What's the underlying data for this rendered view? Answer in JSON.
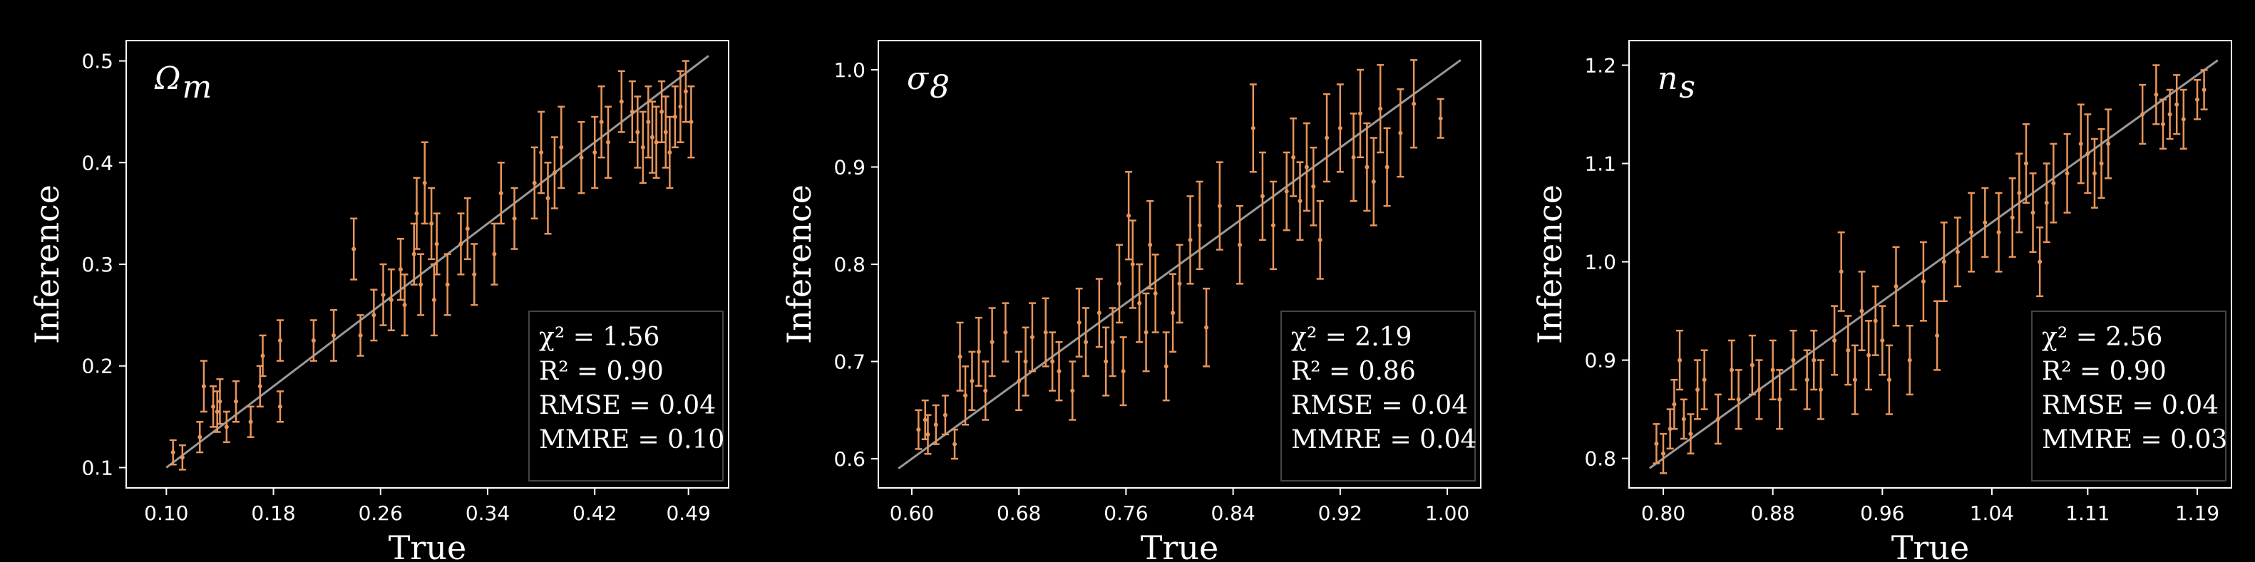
{
  "chart_data": [
    {
      "type": "scatter",
      "panel_label": "Ω_m",
      "panel_label_main": "Ω",
      "panel_label_sub": "m",
      "xlabel": "True",
      "ylabel": "Inference",
      "xlim": [
        0.07,
        0.52
      ],
      "ylim": [
        0.08,
        0.52
      ],
      "xticks": [
        0.1,
        0.18,
        0.26,
        0.34,
        0.42,
        0.49
      ],
      "xtick_labels": [
        "0.10",
        "0.18",
        "0.26",
        "0.34",
        "0.42",
        "0.49"
      ],
      "yticks": [
        0.1,
        0.2,
        0.3,
        0.4,
        0.5
      ],
      "ytick_labels": [
        "0.1",
        "0.2",
        "0.3",
        "0.4",
        "0.5"
      ],
      "diagonal": [
        0.1,
        0.505
      ],
      "stats": [
        "χ² = 1.56",
        "R² = 0.90",
        "RMSE = 0.04",
        "MMRE = 0.10"
      ],
      "points": [
        {
          "x": 0.105,
          "y": 0.115,
          "e": 0.012
        },
        {
          "x": 0.112,
          "y": 0.11,
          "e": 0.012
        },
        {
          "x": 0.125,
          "y": 0.13,
          "e": 0.015
        },
        {
          "x": 0.128,
          "y": 0.18,
          "e": 0.025
        },
        {
          "x": 0.135,
          "y": 0.16,
          "e": 0.02
        },
        {
          "x": 0.138,
          "y": 0.155,
          "e": 0.02
        },
        {
          "x": 0.14,
          "y": 0.165,
          "e": 0.022
        },
        {
          "x": 0.145,
          "y": 0.14,
          "e": 0.015
        },
        {
          "x": 0.152,
          "y": 0.165,
          "e": 0.02
        },
        {
          "x": 0.163,
          "y": 0.145,
          "e": 0.015
        },
        {
          "x": 0.17,
          "y": 0.18,
          "e": 0.02
        },
        {
          "x": 0.172,
          "y": 0.21,
          "e": 0.02
        },
        {
          "x": 0.185,
          "y": 0.225,
          "e": 0.02
        },
        {
          "x": 0.185,
          "y": 0.16,
          "e": 0.015
        },
        {
          "x": 0.21,
          "y": 0.225,
          "e": 0.02
        },
        {
          "x": 0.225,
          "y": 0.23,
          "e": 0.025
        },
        {
          "x": 0.24,
          "y": 0.315,
          "e": 0.03
        },
        {
          "x": 0.245,
          "y": 0.23,
          "e": 0.02
        },
        {
          "x": 0.255,
          "y": 0.25,
          "e": 0.025
        },
        {
          "x": 0.262,
          "y": 0.27,
          "e": 0.03
        },
        {
          "x": 0.268,
          "y": 0.265,
          "e": 0.03
        },
        {
          "x": 0.275,
          "y": 0.295,
          "e": 0.03
        },
        {
          "x": 0.278,
          "y": 0.26,
          "e": 0.03
        },
        {
          "x": 0.285,
          "y": 0.31,
          "e": 0.03
        },
        {
          "x": 0.287,
          "y": 0.35,
          "e": 0.035
        },
        {
          "x": 0.29,
          "y": 0.28,
          "e": 0.03
        },
        {
          "x": 0.293,
          "y": 0.38,
          "e": 0.04
        },
        {
          "x": 0.298,
          "y": 0.34,
          "e": 0.035
        },
        {
          "x": 0.3,
          "y": 0.265,
          "e": 0.035
        },
        {
          "x": 0.302,
          "y": 0.32,
          "e": 0.03
        },
        {
          "x": 0.31,
          "y": 0.28,
          "e": 0.03
        },
        {
          "x": 0.32,
          "y": 0.32,
          "e": 0.03
        },
        {
          "x": 0.325,
          "y": 0.335,
          "e": 0.03
        },
        {
          "x": 0.33,
          "y": 0.29,
          "e": 0.03
        },
        {
          "x": 0.345,
          "y": 0.31,
          "e": 0.03
        },
        {
          "x": 0.35,
          "y": 0.37,
          "e": 0.03
        },
        {
          "x": 0.36,
          "y": 0.345,
          "e": 0.03
        },
        {
          "x": 0.375,
          "y": 0.38,
          "e": 0.035
        },
        {
          "x": 0.38,
          "y": 0.41,
          "e": 0.04
        },
        {
          "x": 0.385,
          "y": 0.365,
          "e": 0.035
        },
        {
          "x": 0.39,
          "y": 0.39,
          "e": 0.035
        },
        {
          "x": 0.395,
          "y": 0.415,
          "e": 0.04
        },
        {
          "x": 0.41,
          "y": 0.405,
          "e": 0.035
        },
        {
          "x": 0.42,
          "y": 0.41,
          "e": 0.035
        },
        {
          "x": 0.425,
          "y": 0.44,
          "e": 0.035
        },
        {
          "x": 0.43,
          "y": 0.42,
          "e": 0.035
        },
        {
          "x": 0.44,
          "y": 0.46,
          "e": 0.03
        },
        {
          "x": 0.448,
          "y": 0.45,
          "e": 0.03
        },
        {
          "x": 0.452,
          "y": 0.43,
          "e": 0.035
        },
        {
          "x": 0.456,
          "y": 0.415,
          "e": 0.035
        },
        {
          "x": 0.46,
          "y": 0.44,
          "e": 0.035
        },
        {
          "x": 0.463,
          "y": 0.425,
          "e": 0.035
        },
        {
          "x": 0.466,
          "y": 0.42,
          "e": 0.035
        },
        {
          "x": 0.47,
          "y": 0.45,
          "e": 0.03
        },
        {
          "x": 0.473,
          "y": 0.43,
          "e": 0.035
        },
        {
          "x": 0.476,
          "y": 0.41,
          "e": 0.035
        },
        {
          "x": 0.48,
          "y": 0.445,
          "e": 0.03
        },
        {
          "x": 0.484,
          "y": 0.455,
          "e": 0.035
        },
        {
          "x": 0.488,
          "y": 0.47,
          "e": 0.03
        },
        {
          "x": 0.492,
          "y": 0.44,
          "e": 0.035
        }
      ]
    },
    {
      "type": "scatter",
      "panel_label": "σ_8",
      "panel_label_main": "σ",
      "panel_label_sub": "8",
      "xlabel": "True",
      "ylabel": "Inference",
      "xlim": [
        0.575,
        1.025
      ],
      "ylim": [
        0.57,
        1.03
      ],
      "xticks": [
        0.6,
        0.68,
        0.76,
        0.84,
        0.92,
        1.0
      ],
      "xtick_labels": [
        "0.60",
        "0.68",
        "0.76",
        "0.84",
        "0.92",
        "1.00"
      ],
      "yticks": [
        0.6,
        0.7,
        0.8,
        0.9,
        1.0
      ],
      "ytick_labels": [
        "0.6",
        "0.7",
        "0.8",
        "0.9",
        "1.0"
      ],
      "diagonal": [
        0.59,
        1.01
      ],
      "stats": [
        "χ² = 2.19",
        "R² = 0.86",
        "RMSE = 0.04",
        "MMRE = 0.04"
      ],
      "points": [
        {
          "x": 0.605,
          "y": 0.63,
          "e": 0.02
        },
        {
          "x": 0.61,
          "y": 0.64,
          "e": 0.02
        },
        {
          "x": 0.612,
          "y": 0.625,
          "e": 0.02
        },
        {
          "x": 0.618,
          "y": 0.635,
          "e": 0.02
        },
        {
          "x": 0.625,
          "y": 0.645,
          "e": 0.02
        },
        {
          "x": 0.632,
          "y": 0.615,
          "e": 0.015
        },
        {
          "x": 0.636,
          "y": 0.705,
          "e": 0.035
        },
        {
          "x": 0.64,
          "y": 0.665,
          "e": 0.03
        },
        {
          "x": 0.645,
          "y": 0.68,
          "e": 0.03
        },
        {
          "x": 0.65,
          "y": 0.71,
          "e": 0.035
        },
        {
          "x": 0.655,
          "y": 0.67,
          "e": 0.03
        },
        {
          "x": 0.66,
          "y": 0.72,
          "e": 0.035
        },
        {
          "x": 0.67,
          "y": 0.73,
          "e": 0.03
        },
        {
          "x": 0.68,
          "y": 0.68,
          "e": 0.03
        },
        {
          "x": 0.685,
          "y": 0.7,
          "e": 0.035
        },
        {
          "x": 0.69,
          "y": 0.725,
          "e": 0.035
        },
        {
          "x": 0.7,
          "y": 0.73,
          "e": 0.035
        },
        {
          "x": 0.705,
          "y": 0.7,
          "e": 0.03
        },
        {
          "x": 0.71,
          "y": 0.69,
          "e": 0.03
        },
        {
          "x": 0.72,
          "y": 0.67,
          "e": 0.03
        },
        {
          "x": 0.725,
          "y": 0.74,
          "e": 0.035
        },
        {
          "x": 0.73,
          "y": 0.72,
          "e": 0.035
        },
        {
          "x": 0.74,
          "y": 0.75,
          "e": 0.035
        },
        {
          "x": 0.745,
          "y": 0.7,
          "e": 0.035
        },
        {
          "x": 0.75,
          "y": 0.72,
          "e": 0.035
        },
        {
          "x": 0.755,
          "y": 0.78,
          "e": 0.04
        },
        {
          "x": 0.758,
          "y": 0.69,
          "e": 0.035
        },
        {
          "x": 0.762,
          "y": 0.85,
          "e": 0.045
        },
        {
          "x": 0.765,
          "y": 0.8,
          "e": 0.045
        },
        {
          "x": 0.77,
          "y": 0.76,
          "e": 0.04
        },
        {
          "x": 0.775,
          "y": 0.73,
          "e": 0.04
        },
        {
          "x": 0.778,
          "y": 0.82,
          "e": 0.045
        },
        {
          "x": 0.782,
          "y": 0.77,
          "e": 0.04
        },
        {
          "x": 0.79,
          "y": 0.695,
          "e": 0.035
        },
        {
          "x": 0.795,
          "y": 0.75,
          "e": 0.04
        },
        {
          "x": 0.8,
          "y": 0.78,
          "e": 0.04
        },
        {
          "x": 0.808,
          "y": 0.825,
          "e": 0.045
        },
        {
          "x": 0.815,
          "y": 0.84,
          "e": 0.045
        },
        {
          "x": 0.82,
          "y": 0.735,
          "e": 0.04
        },
        {
          "x": 0.83,
          "y": 0.86,
          "e": 0.045
        },
        {
          "x": 0.845,
          "y": 0.82,
          "e": 0.04
        },
        {
          "x": 0.855,
          "y": 0.94,
          "e": 0.045
        },
        {
          "x": 0.862,
          "y": 0.87,
          "e": 0.045
        },
        {
          "x": 0.87,
          "y": 0.84,
          "e": 0.045
        },
        {
          "x": 0.88,
          "y": 0.875,
          "e": 0.04
        },
        {
          "x": 0.885,
          "y": 0.91,
          "e": 0.04
        },
        {
          "x": 0.89,
          "y": 0.865,
          "e": 0.04
        },
        {
          "x": 0.895,
          "y": 0.9,
          "e": 0.045
        },
        {
          "x": 0.9,
          "y": 0.88,
          "e": 0.04
        },
        {
          "x": 0.905,
          "y": 0.825,
          "e": 0.04
        },
        {
          "x": 0.91,
          "y": 0.93,
          "e": 0.045
        },
        {
          "x": 0.92,
          "y": 0.94,
          "e": 0.045
        },
        {
          "x": 0.93,
          "y": 0.91,
          "e": 0.045
        },
        {
          "x": 0.935,
          "y": 0.955,
          "e": 0.045
        },
        {
          "x": 0.94,
          "y": 0.9,
          "e": 0.045
        },
        {
          "x": 0.945,
          "y": 0.885,
          "e": 0.045
        },
        {
          "x": 0.95,
          "y": 0.96,
          "e": 0.045
        },
        {
          "x": 0.955,
          "y": 0.9,
          "e": 0.04
        },
        {
          "x": 0.965,
          "y": 0.935,
          "e": 0.045
        },
        {
          "x": 0.975,
          "y": 0.965,
          "e": 0.045
        },
        {
          "x": 0.995,
          "y": 0.95,
          "e": 0.02
        }
      ]
    },
    {
      "type": "scatter",
      "panel_label": "n_s",
      "panel_label_main": "n",
      "panel_label_sub": "s",
      "xlabel": "True",
      "ylabel": "Inference",
      "xlim": [
        0.775,
        1.215
      ],
      "ylim": [
        0.77,
        1.225
      ],
      "xticks": [
        0.8,
        0.88,
        0.96,
        1.04,
        1.11,
        1.19
      ],
      "xtick_labels": [
        "0.80",
        "0.88",
        "0.96",
        "1.04",
        "1.11",
        "1.19"
      ],
      "yticks": [
        0.8,
        0.9,
        1.0,
        1.1,
        1.2
      ],
      "ytick_labels": [
        "0.8",
        "0.9",
        "1.0",
        "1.1",
        "1.2"
      ],
      "diagonal": [
        0.79,
        1.205
      ],
      "stats": [
        "χ² = 2.56",
        "R² = 0.90",
        "RMSE = 0.04",
        "MMRE = 0.03"
      ],
      "points": [
        {
          "x": 0.795,
          "y": 0.815,
          "e": 0.02
        },
        {
          "x": 0.8,
          "y": 0.805,
          "e": 0.02
        },
        {
          "x": 0.805,
          "y": 0.83,
          "e": 0.02
        },
        {
          "x": 0.808,
          "y": 0.855,
          "e": 0.025
        },
        {
          "x": 0.812,
          "y": 0.9,
          "e": 0.03
        },
        {
          "x": 0.815,
          "y": 0.84,
          "e": 0.02
        },
        {
          "x": 0.82,
          "y": 0.825,
          "e": 0.02
        },
        {
          "x": 0.825,
          "y": 0.87,
          "e": 0.03
        },
        {
          "x": 0.83,
          "y": 0.88,
          "e": 0.03
        },
        {
          "x": 0.84,
          "y": 0.84,
          "e": 0.025
        },
        {
          "x": 0.85,
          "y": 0.89,
          "e": 0.03
        },
        {
          "x": 0.855,
          "y": 0.86,
          "e": 0.03
        },
        {
          "x": 0.865,
          "y": 0.895,
          "e": 0.03
        },
        {
          "x": 0.87,
          "y": 0.87,
          "e": 0.03
        },
        {
          "x": 0.88,
          "y": 0.89,
          "e": 0.03
        },
        {
          "x": 0.885,
          "y": 0.86,
          "e": 0.03
        },
        {
          "x": 0.895,
          "y": 0.9,
          "e": 0.03
        },
        {
          "x": 0.905,
          "y": 0.88,
          "e": 0.03
        },
        {
          "x": 0.91,
          "y": 0.9,
          "e": 0.03
        },
        {
          "x": 0.915,
          "y": 0.87,
          "e": 0.03
        },
        {
          "x": 0.925,
          "y": 0.92,
          "e": 0.035
        },
        {
          "x": 0.93,
          "y": 0.99,
          "e": 0.04
        },
        {
          "x": 0.935,
          "y": 0.91,
          "e": 0.035
        },
        {
          "x": 0.94,
          "y": 0.88,
          "e": 0.035
        },
        {
          "x": 0.945,
          "y": 0.95,
          "e": 0.04
        },
        {
          "x": 0.95,
          "y": 0.905,
          "e": 0.035
        },
        {
          "x": 0.955,
          "y": 0.94,
          "e": 0.035
        },
        {
          "x": 0.96,
          "y": 0.92,
          "e": 0.035
        },
        {
          "x": 0.965,
          "y": 0.88,
          "e": 0.035
        },
        {
          "x": 0.97,
          "y": 0.975,
          "e": 0.04
        },
        {
          "x": 0.98,
          "y": 0.9,
          "e": 0.035
        },
        {
          "x": 0.99,
          "y": 0.98,
          "e": 0.04
        },
        {
          "x": 1.0,
          "y": 0.925,
          "e": 0.035
        },
        {
          "x": 1.005,
          "y": 1.0,
          "e": 0.04
        },
        {
          "x": 1.015,
          "y": 1.01,
          "e": 0.035
        },
        {
          "x": 1.025,
          "y": 1.03,
          "e": 0.04
        },
        {
          "x": 1.035,
          "y": 1.04,
          "e": 0.035
        },
        {
          "x": 1.045,
          "y": 1.03,
          "e": 0.04
        },
        {
          "x": 1.055,
          "y": 1.045,
          "e": 0.04
        },
        {
          "x": 1.06,
          "y": 1.07,
          "e": 0.04
        },
        {
          "x": 1.065,
          "y": 1.1,
          "e": 0.04
        },
        {
          "x": 1.07,
          "y": 1.05,
          "e": 0.04
        },
        {
          "x": 1.075,
          "y": 1.0,
          "e": 0.035
        },
        {
          "x": 1.08,
          "y": 1.06,
          "e": 0.04
        },
        {
          "x": 1.085,
          "y": 1.08,
          "e": 0.04
        },
        {
          "x": 1.095,
          "y": 1.09,
          "e": 0.04
        },
        {
          "x": 1.105,
          "y": 1.12,
          "e": 0.04
        },
        {
          "x": 1.11,
          "y": 1.11,
          "e": 0.04
        },
        {
          "x": 1.115,
          "y": 1.09,
          "e": 0.035
        },
        {
          "x": 1.12,
          "y": 1.1,
          "e": 0.035
        },
        {
          "x": 1.125,
          "y": 1.12,
          "e": 0.035
        },
        {
          "x": 1.15,
          "y": 1.15,
          "e": 0.03
        },
        {
          "x": 1.16,
          "y": 1.17,
          "e": 0.03
        },
        {
          "x": 1.165,
          "y": 1.14,
          "e": 0.025
        },
        {
          "x": 1.17,
          "y": 1.15,
          "e": 0.025
        },
        {
          "x": 1.175,
          "y": 1.16,
          "e": 0.03
        },
        {
          "x": 1.18,
          "y": 1.145,
          "e": 0.03
        },
        {
          "x": 1.19,
          "y": 1.165,
          "e": 0.02
        },
        {
          "x": 1.195,
          "y": 1.175,
          "e": 0.02
        }
      ]
    }
  ],
  "colors": {
    "background": "#000000",
    "axes": "#ffffff",
    "points": "#e8955a",
    "diagonal": "#999999",
    "stat_box_border": "#444444"
  }
}
